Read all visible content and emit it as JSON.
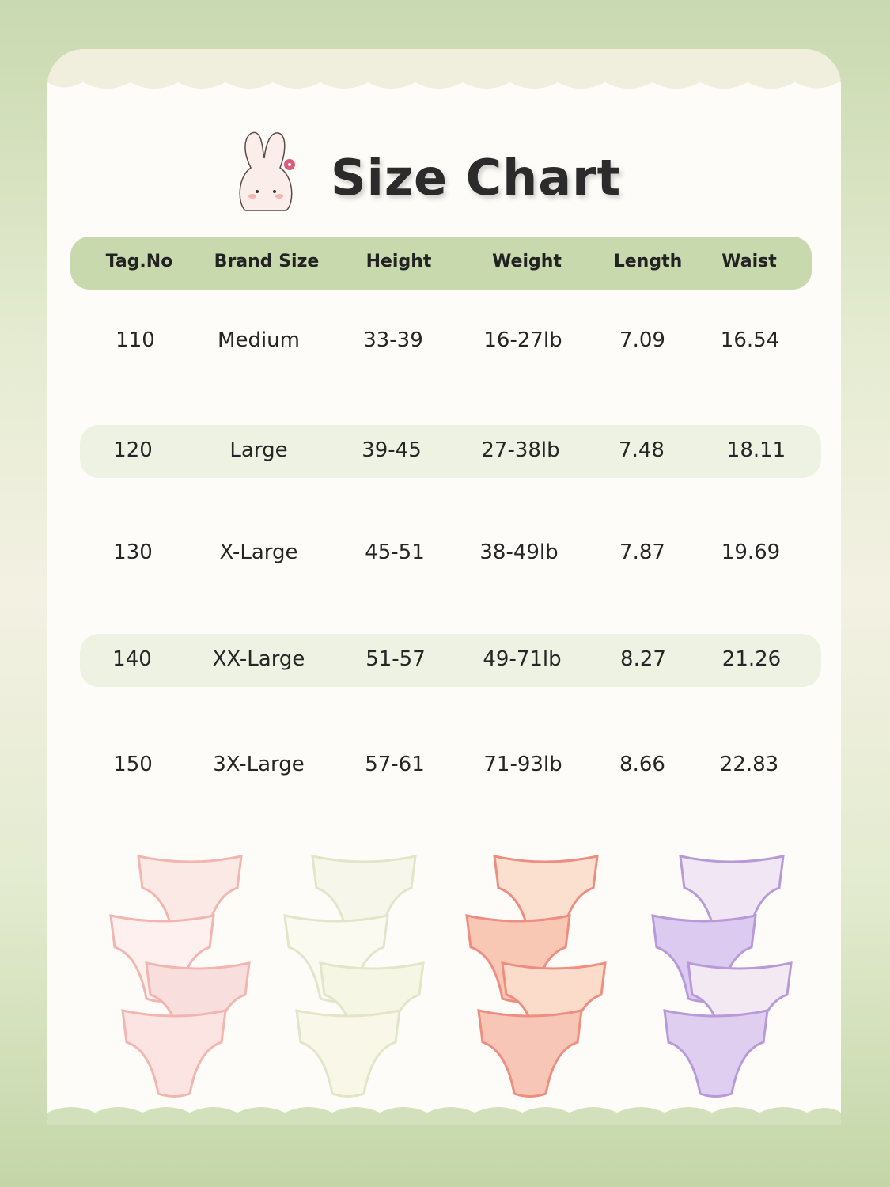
{
  "title": "Size Chart",
  "columns": [
    "Tag.No",
    "Brand Size",
    "Height",
    "Weight",
    "Length",
    "Waist"
  ],
  "rows": [
    [
      "110",
      "Medium",
      "33-39",
      "16-27lb",
      "7.09",
      "16.54"
    ],
    [
      "120",
      "Large",
      "39-45",
      "27-38lb",
      "7.48",
      "18.11"
    ],
    [
      "130",
      "X-Large",
      "45-51",
      "38-49lb",
      "7.87",
      "19.69"
    ],
    [
      "140",
      "XX-Large",
      "51-57",
      "49-71lb",
      "8.27",
      "21.26"
    ],
    [
      "150",
      "3X-Large",
      "57-61",
      "71-93lb",
      "8.66",
      "22.83"
    ]
  ],
  "colors": {
    "header": "#c8d9ae",
    "shaded_row": "#eef2e2",
    "background": "#c9d9b0"
  }
}
